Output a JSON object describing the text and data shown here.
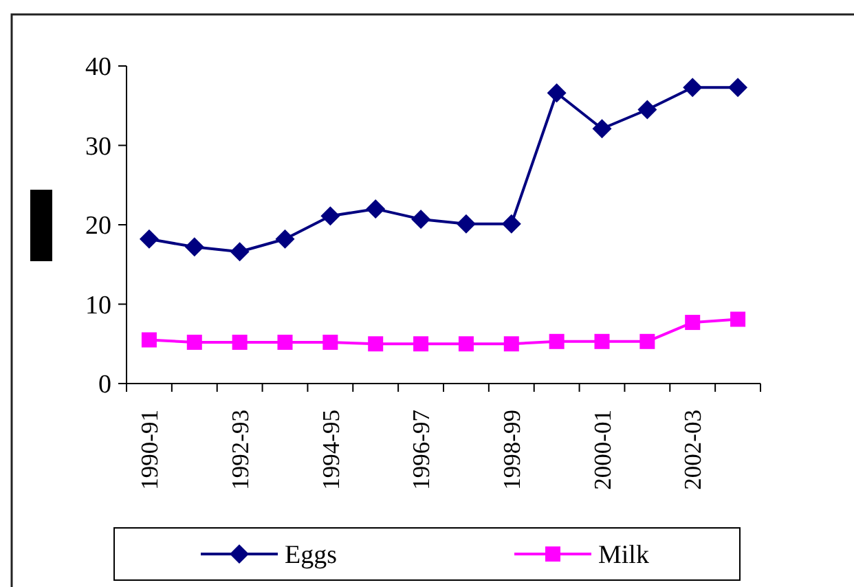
{
  "chart_data": {
    "type": "line",
    "categories": [
      "1990-91",
      null,
      "1992-93",
      null,
      "1994-95",
      null,
      "1996-97",
      null,
      "1998-99",
      null,
      "2000-01",
      null,
      "2002-03",
      null
    ],
    "series": [
      {
        "name": "Eggs",
        "color": "#000080",
        "marker": "diamond",
        "values": [
          18.2,
          17.2,
          16.6,
          18.2,
          21.1,
          22.0,
          20.7,
          20.1,
          20.1,
          36.6,
          32.1,
          34.5,
          37.3,
          37.3
        ]
      },
      {
        "name": "Milk",
        "color": "#ff00ff",
        "marker": "square",
        "values": [
          5.5,
          5.2,
          5.2,
          5.2,
          5.2,
          5.0,
          5.0,
          5.0,
          5.0,
          5.3,
          5.3,
          5.3,
          7.7,
          8.1
        ]
      }
    ],
    "ylim": [
      0,
      40
    ],
    "yticks": [
      0,
      10,
      20,
      30,
      40
    ],
    "grid": false,
    "legend": "bottom"
  }
}
